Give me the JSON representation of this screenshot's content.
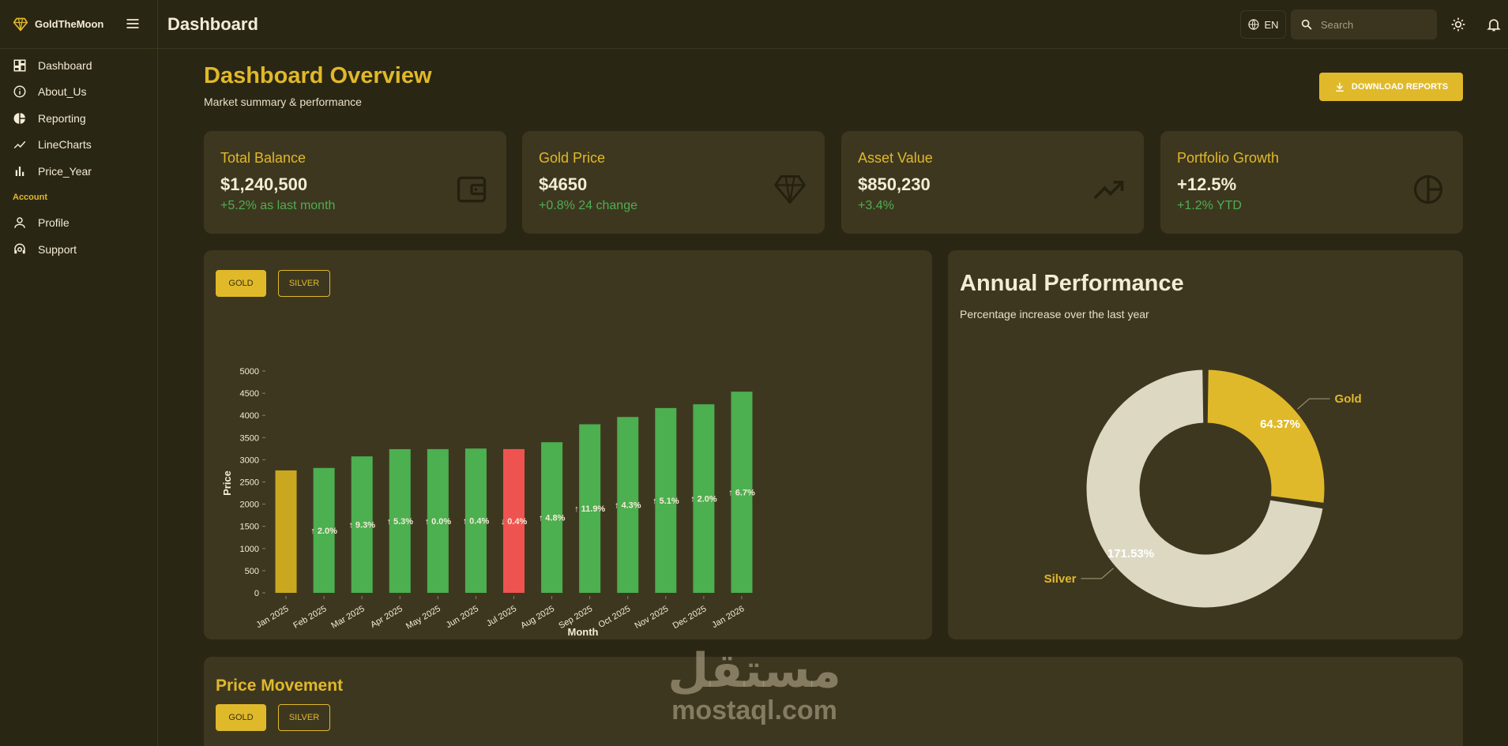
{
  "brand": {
    "name": "GoldTheMoon"
  },
  "sidebar": {
    "items": [
      {
        "label": "Dashboard",
        "icon": "dashboard-icon"
      },
      {
        "label": "About_Us",
        "icon": "info-icon"
      },
      {
        "label": "Reporting",
        "icon": "pie-icon"
      },
      {
        "label": "LineCharts",
        "icon": "trending-icon"
      },
      {
        "label": "Price_Year",
        "icon": "bar-chart-icon"
      }
    ],
    "section_label": "Account",
    "account_items": [
      {
        "label": "Profile",
        "icon": "person-icon"
      },
      {
        "label": "Support",
        "icon": "support-icon"
      }
    ]
  },
  "header": {
    "title": "Dashboard",
    "lang": "EN",
    "search_placeholder": "Search"
  },
  "main": {
    "title": "Dashboard Overview",
    "subtitle": "Market summary & performance",
    "download_label": "DOWNLOAD REPORTS"
  },
  "cards": [
    {
      "title": "Total Balance",
      "value": "$1,240,500",
      "change": "+5.2% as last month",
      "icon": "wallet-icon"
    },
    {
      "title": "Gold Price",
      "value": "$4650",
      "change": "+0.8% 24 change",
      "icon": "diamond-icon"
    },
    {
      "title": "Asset Value",
      "value": "$850,230",
      "change": "+3.4%",
      "icon": "trending-up-icon"
    },
    {
      "title": "Portfolio Growth",
      "value": "+12.5%",
      "change": "+1.2% YTD",
      "icon": "pie-chart-icon"
    }
  ],
  "bar_panel": {
    "gold_label": "GOLD",
    "silver_label": "SILVER"
  },
  "performance": {
    "title": "Annual Performance",
    "subtitle": "Percentage increase over the last year"
  },
  "price_movement": {
    "title": "Price Movement",
    "gold_label": "GOLD",
    "silver_label": "SILVER"
  },
  "watermark": {
    "arabic": "مستقل",
    "latin": "mostaql.com"
  },
  "colors": {
    "accent": "#e0b92a",
    "up": "#4caf50",
    "down": "#ef5350",
    "bg": "#2a2614",
    "panel": "#3e3720",
    "silver": "#ddd8c2"
  },
  "chart_data": [
    {
      "type": "bar",
      "categories": [
        "Jan 2025",
        "Feb 2025",
        "Mar 2025",
        "Apr 2025",
        "May 2025",
        "Jun 2025",
        "Jul 2025",
        "Aug 2025",
        "Sep 2025",
        "Oct 2025",
        "Nov 2025",
        "Dec 2025",
        "Jan 2026"
      ],
      "values": [
        2760,
        2815,
        3076,
        3239,
        3240,
        3253,
        3240,
        3395,
        3800,
        3964,
        4166,
        4250,
        4535
      ],
      "labels": [
        "",
        "↑ 2.0%",
        "↑ 9.3%",
        "↑ 5.3%",
        "↑ 0.0%",
        "↑ 0.4%",
        "↓ 0.4%",
        "↑ 4.8%",
        "↑ 11.9%",
        "↑ 4.3%",
        "↑ 5.1%",
        "↑ 2.0%",
        "↑ 6.7%"
      ],
      "bar_status": [
        "base",
        "up",
        "up",
        "up",
        "up",
        "up",
        "down",
        "up",
        "up",
        "up",
        "up",
        "up",
        "up"
      ],
      "xlabel": "Month",
      "ylabel": "Price",
      "ylim": [
        0,
        5000
      ],
      "yticks": [
        0,
        500,
        1000,
        1500,
        2000,
        2500,
        3000,
        3500,
        4000,
        4500,
        5000
      ]
    },
    {
      "type": "pie",
      "donut": true,
      "slices": [
        {
          "name": "Gold",
          "value": 64.37,
          "label": "64.37%",
          "color": "#e0b92a"
        },
        {
          "name": "Silver",
          "value": 171.53,
          "label": "171.53%",
          "color": "#ddd8c2"
        }
      ]
    }
  ]
}
